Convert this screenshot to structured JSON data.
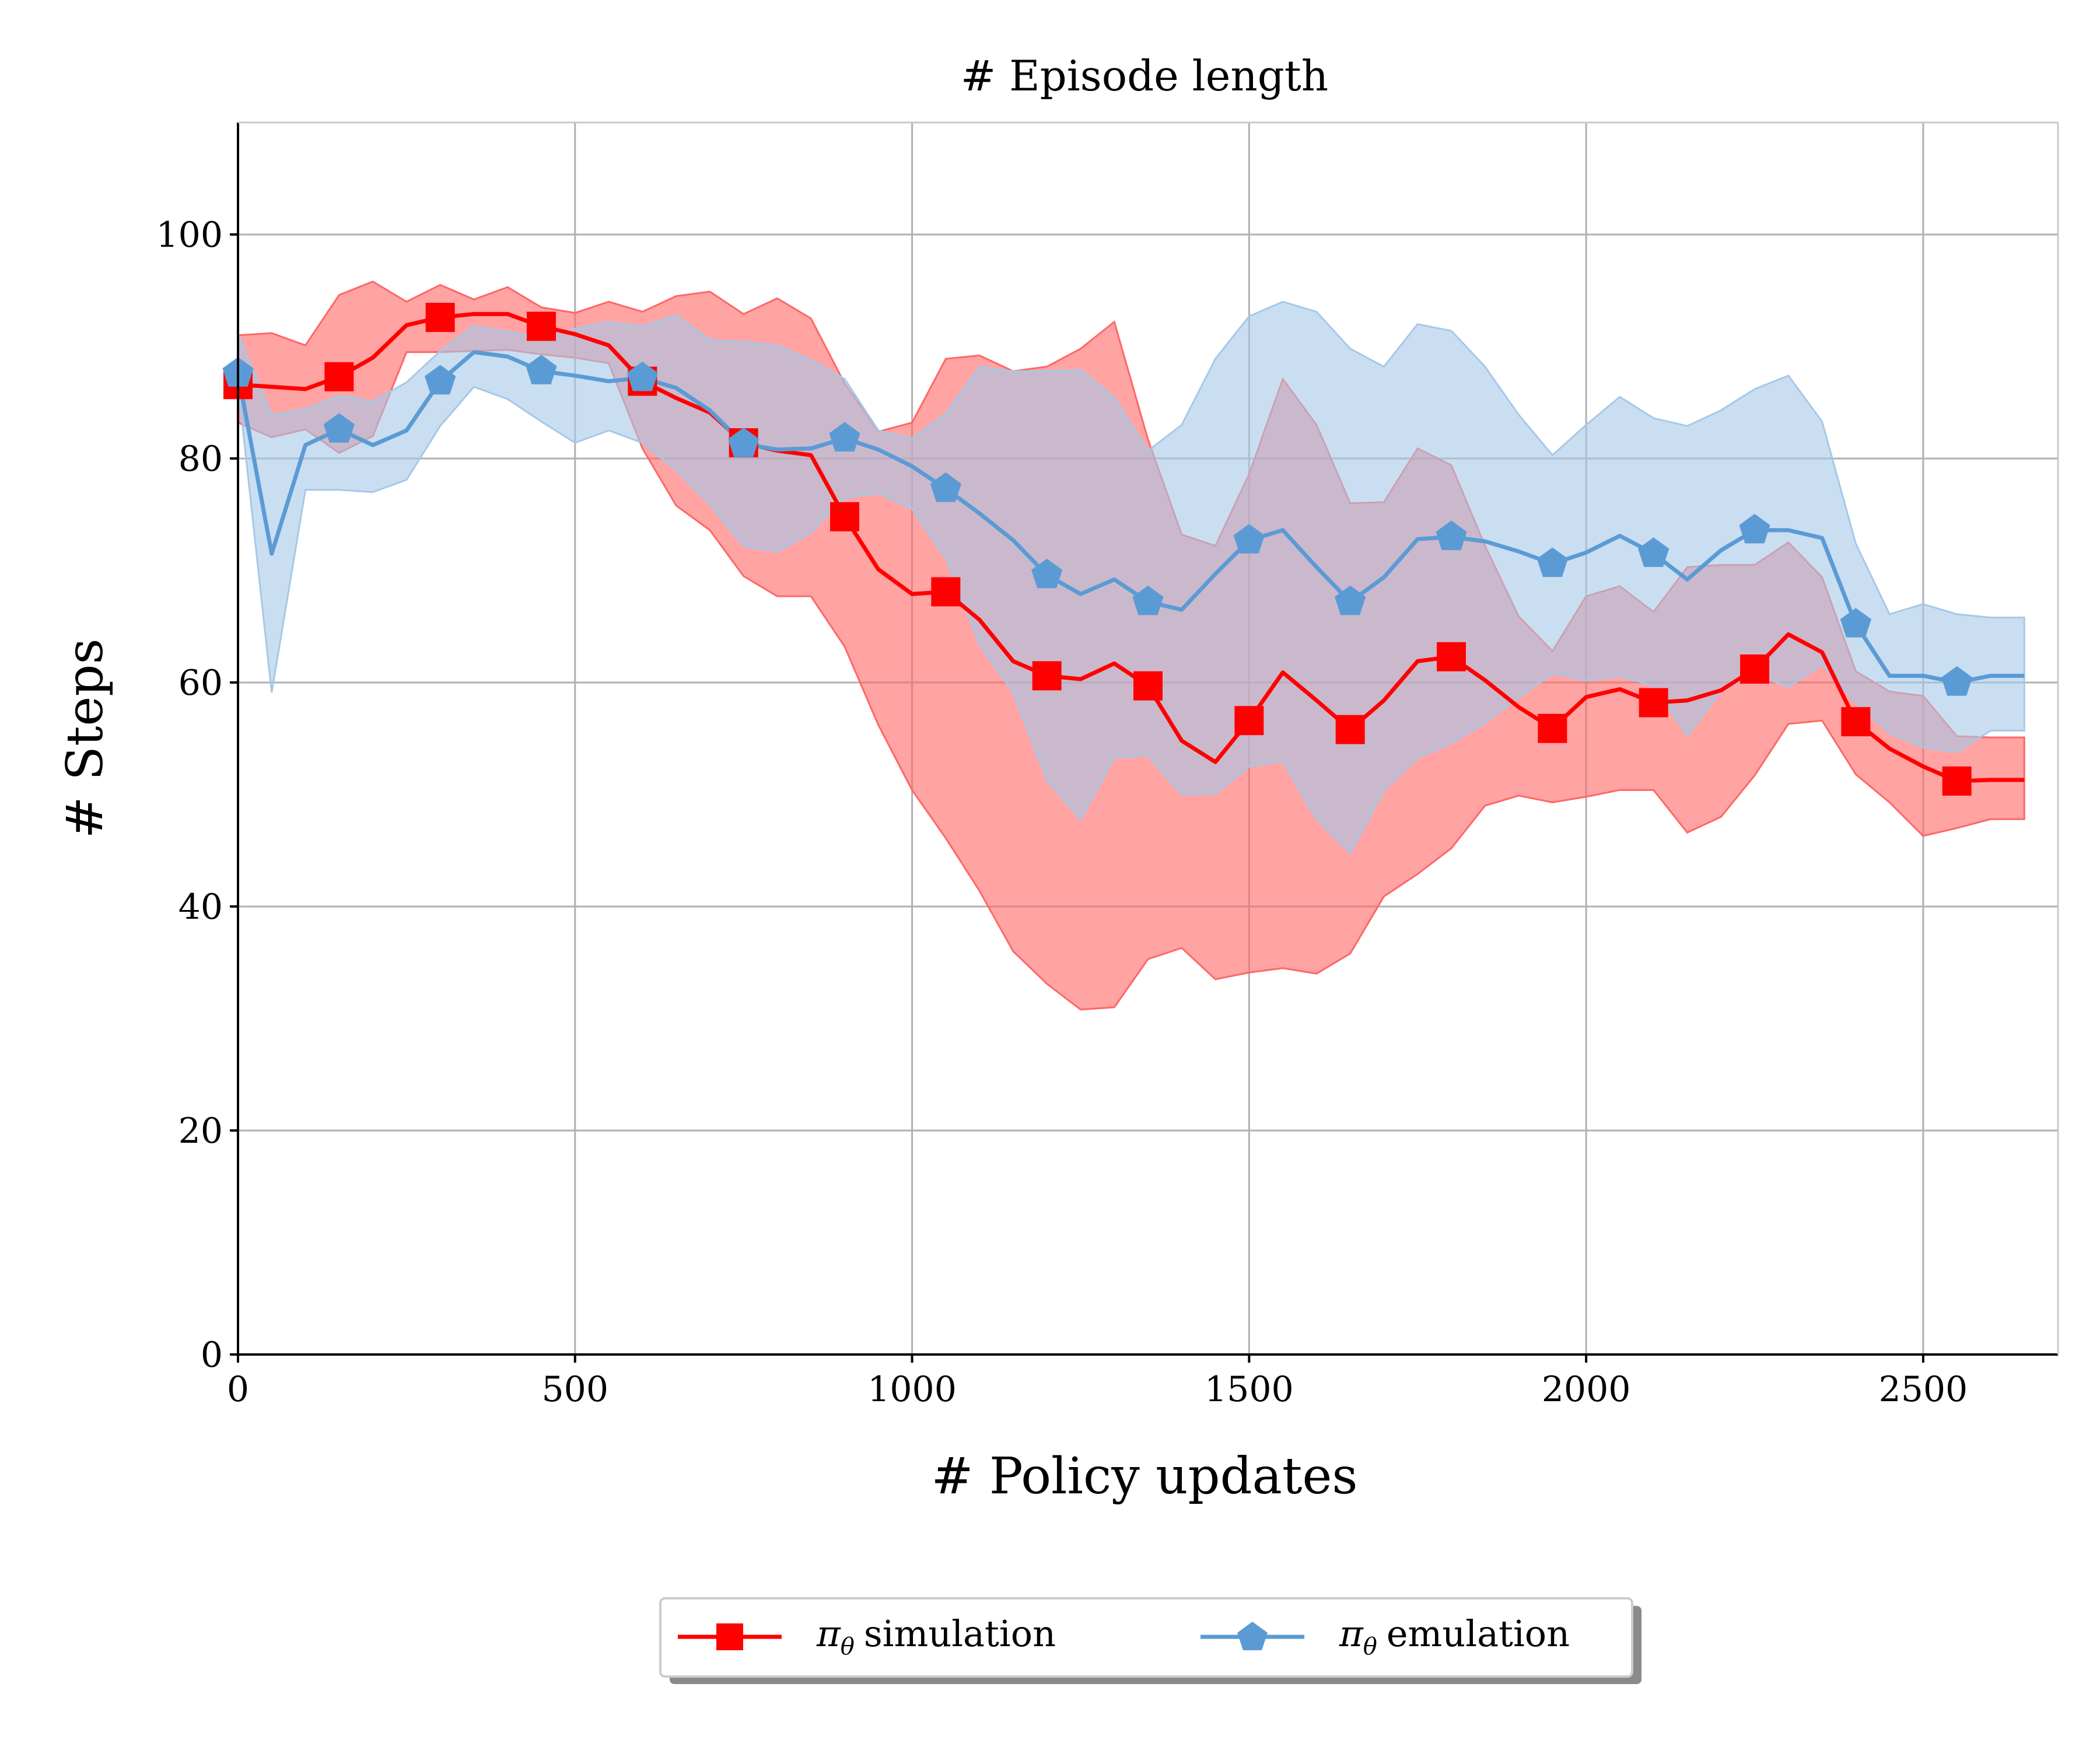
{
  "chart_data": {
    "type": "line",
    "title": "# Episode length",
    "xlabel": "# Policy updates",
    "ylabel": "# Steps",
    "xlim": [
      0,
      2700
    ],
    "ylim": [
      0,
      110
    ],
    "xticks": [
      0,
      500,
      1000,
      1500,
      2000,
      2500
    ],
    "yticks": [
      0,
      20,
      40,
      60,
      80,
      100
    ],
    "grid": true,
    "legend_position": "bottom-center",
    "x": [
      0,
      50,
      100,
      150,
      200,
      250,
      300,
      350,
      400,
      450,
      500,
      550,
      600,
      650,
      700,
      750,
      800,
      850,
      900,
      950,
      1000,
      1050,
      1100,
      1150,
      1200,
      1250,
      1300,
      1350,
      1400,
      1450,
      1500,
      1550,
      1600,
      1650,
      1700,
      1750,
      1800,
      1850,
      1900,
      1950,
      2000,
      2050,
      2100,
      2150,
      2200,
      2250,
      2300,
      2350,
      2400,
      2450,
      2500,
      2550,
      2600,
      2650
    ],
    "series": [
      {
        "name": "π_θ simulation",
        "color": "#ff0000",
        "band_color": "#ff6666",
        "marker": "square",
        "marker_every": 3,
        "mean": [
          86.6,
          86.4,
          86.2,
          87.3,
          89,
          91.9,
          92.6,
          92.9,
          92.9,
          91.8,
          91.1,
          90.1,
          86.9,
          85.4,
          84.1,
          81.4,
          80.7,
          80.3,
          74.8,
          70.1,
          67.9,
          68.1,
          65.6,
          61.9,
          60.6,
          60.3,
          61.7,
          59.7,
          54.8,
          52.9,
          56.6,
          60.9,
          58.4,
          55.8,
          58.4,
          61.9,
          62.3,
          60.2,
          57.8,
          55.9,
          58.7,
          59.4,
          58.2,
          58.4,
          59.3,
          61.2,
          64.3,
          62.7,
          56.5,
          54.1,
          52.5,
          51.2,
          51.3,
          51.3
        ],
        "upper": [
          91,
          91.2,
          90.1,
          94.6,
          95.8,
          94,
          95.5,
          94.2,
          95.3,
          93.5,
          93,
          94,
          93.1,
          94.5,
          94.9,
          92.9,
          94.3,
          92.5,
          86.7,
          82.4,
          83.2,
          88.9,
          89.2,
          87.8,
          88.2,
          89.8,
          92.2,
          81.7,
          73.2,
          72.2,
          78.6,
          87.1,
          83,
          76,
          76.1,
          80.9,
          79.4,
          72.2,
          65.9,
          62.8,
          67.7,
          68.6,
          66.3,
          70.3,
          70.5,
          70.5,
          72.5,
          69.4,
          61,
          59.2,
          58.8,
          55.2,
          55.1,
          55.1
        ],
        "lower": [
          83.2,
          81.9,
          82.6,
          80.5,
          82,
          89.5,
          89.5,
          89.6,
          89.7,
          89.3,
          89,
          88.5,
          80.9,
          75.8,
          73.6,
          69.5,
          67.7,
          67.7,
          63.2,
          56.2,
          50.4,
          46.1,
          41.4,
          36,
          33.1,
          30.8,
          31,
          35.3,
          36.3,
          33.5,
          34.1,
          34.5,
          34,
          35.8,
          40.9,
          42.9,
          45.2,
          49,
          49.9,
          49.3,
          49.8,
          50.4,
          50.4,
          46.6,
          48,
          51.7,
          56.3,
          56.6,
          51.8,
          49.3,
          46.3,
          47,
          47.8,
          47.8
        ]
      },
      {
        "name": "π_θ emulation",
        "color": "#5b9bd5",
        "band_color": "#a6c8e8",
        "marker": "pentagon",
        "marker_every": 3,
        "mean": [
          87.6,
          71.5,
          81.2,
          82.6,
          81.2,
          82.5,
          86.9,
          89.5,
          89.1,
          87.8,
          87.4,
          86.9,
          87.2,
          86.3,
          84.3,
          81.3,
          80.8,
          80.9,
          81.8,
          80.8,
          79.3,
          77.3,
          75.1,
          72.7,
          69.6,
          67.9,
          69.2,
          67.2,
          66.5,
          69.7,
          72.7,
          73.6,
          70.3,
          67.2,
          69.4,
          72.8,
          73,
          72.6,
          71.7,
          70.6,
          71.6,
          73.1,
          71.5,
          69.2,
          71.8,
          73.6,
          73.6,
          72.9,
          65.2,
          60.6,
          60.6,
          60,
          60.6,
          60.6
        ],
        "upper": [
          91.1,
          83.9,
          84.4,
          85.6,
          85.1,
          86.8,
          89.6,
          91.8,
          91.3,
          90.8,
          91.6,
          92.2,
          91.8,
          92.8,
          90.6,
          90.4,
          90.1,
          88.8,
          87.1,
          82.5,
          81.8,
          84,
          88.2,
          87.8,
          87.8,
          87.9,
          85.4,
          80.7,
          83,
          88.9,
          92.7,
          94,
          93.1,
          89.8,
          88.2,
          92,
          91.4,
          88.2,
          83.9,
          80.3,
          83,
          85.5,
          83.6,
          82.9,
          84.3,
          86.2,
          87.4,
          83.3,
          72.4,
          66.1,
          67,
          66.1,
          65.8,
          65.8
        ],
        "lower": [
          86.6,
          59.1,
          77.2,
          77.2,
          77,
          78.1,
          82.9,
          86.4,
          85.3,
          83.3,
          81.4,
          82.5,
          81.4,
          79,
          75.9,
          72.2,
          71.7,
          73.4,
          76.5,
          76.9,
          75.5,
          71.1,
          63.4,
          59.1,
          51.3,
          47.8,
          53.3,
          53.5,
          50,
          50.1,
          52.5,
          53,
          47.8,
          44.8,
          50.4,
          53.3,
          54.6,
          56.4,
          58.7,
          60.8,
          60.2,
          60.6,
          59.7,
          55.3,
          59.2,
          60.8,
          59.6,
          61.6,
          58.2,
          55.5,
          54.2,
          53.8,
          55.7,
          55.7
        ]
      }
    ]
  },
  "legend": {
    "items": [
      {
        "symbol": "π",
        "subscript": "θ",
        "label": "simulation"
      },
      {
        "symbol": "π",
        "subscript": "θ",
        "label": "emulation"
      }
    ]
  }
}
